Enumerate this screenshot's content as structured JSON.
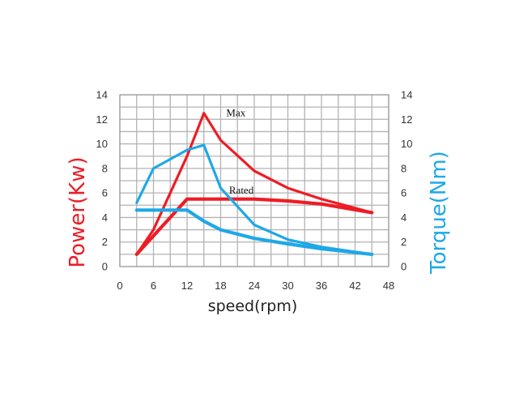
{
  "chart_data": {
    "type": "line",
    "xlabel": "speed(rpm)",
    "ylabel_left": "Power(Kw)",
    "ylabel_right": "Torque(Nm)",
    "xlim": [
      0,
      48
    ],
    "xticks": [
      0,
      6,
      12,
      18,
      24,
      30,
      36,
      42,
      48
    ],
    "ylim_left": [
      0,
      14
    ],
    "ylim_right": [
      0,
      14
    ],
    "yticks": [
      0,
      2,
      4,
      6,
      8,
      10,
      12,
      14
    ],
    "grid": true,
    "annotations": [
      {
        "text": "Max",
        "x": 19,
        "y": 12.5
      },
      {
        "text": "Rated",
        "x": 19.5,
        "y": 6.2
      }
    ],
    "colors": {
      "power": "#ee1c25",
      "torque": "#1ea8e8",
      "grid": "#b3b3b3"
    },
    "series": [
      {
        "axis": "left",
        "kind": "power",
        "width": "thin",
        "x": [
          3,
          6,
          12,
          15,
          18,
          24,
          30,
          36,
          45
        ],
        "y": [
          1.0,
          3.0,
          9.0,
          12.5,
          10.3,
          7.8,
          6.4,
          5.5,
          4.4
        ]
      },
      {
        "axis": "left",
        "kind": "power",
        "width": "thick",
        "x": [
          3,
          6,
          12,
          15,
          18,
          24,
          30,
          36,
          45
        ],
        "y": [
          1.0,
          2.5,
          5.5,
          5.5,
          5.5,
          5.5,
          5.35,
          5.1,
          4.4
        ]
      },
      {
        "axis": "right",
        "kind": "torque",
        "width": "thin",
        "x": [
          3,
          6,
          12,
          15,
          18,
          24,
          30,
          36,
          45
        ],
        "y": [
          5.2,
          8.0,
          9.5,
          9.9,
          6.4,
          3.4,
          2.2,
          1.6,
          1.0
        ]
      },
      {
        "axis": "right",
        "kind": "torque",
        "width": "thick",
        "x": [
          3,
          6,
          12,
          15,
          18,
          24,
          30,
          36,
          45
        ],
        "y": [
          4.6,
          4.6,
          4.6,
          3.7,
          3.0,
          2.3,
          1.85,
          1.45,
          1.0
        ]
      }
    ]
  }
}
